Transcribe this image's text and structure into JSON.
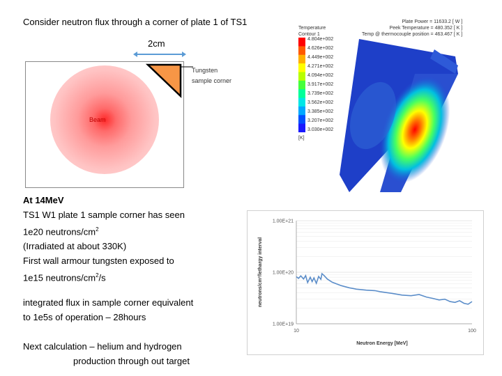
{
  "title": "Consider neutron flux through a corner of plate 1 of TS1",
  "diagram": {
    "dimension_label": "2cm",
    "corner_label_line1": "Tungsten",
    "corner_label_line2": "sample corner",
    "beam_label": "Beam"
  },
  "text": {
    "p1": [
      "At 14MeV",
      "TS1 W1 plate 1 sample corner has seen",
      "1e20 neutrons/cm",
      "(Irradiated at about 330K)",
      "First wall armour tungsten exposed to",
      "1e15 neutrons/cm",
      "/s"
    ],
    "sup2": "2",
    "p2": [
      "integrated flux in sample corner equivalent",
      "to 1e5s of operation – 28hours"
    ],
    "p3": [
      "Next calculation – helium and hydrogen",
      "production through out target"
    ]
  },
  "thermal": {
    "legend_title": "Temperature",
    "legend_subtitle": "Contour 1",
    "legend_unit": "[K]",
    "legend_values": [
      "4.804e+002",
      "4.626e+002",
      "4.449e+002",
      "4.271e+002",
      "4.094e+002",
      "3.917e+002",
      "3.739e+002",
      "3.562e+002",
      "3.385e+002",
      "3.207e+002",
      "3.030e+002"
    ],
    "legend_colors": [
      "#ff0000",
      "#ff5a00",
      "#ffb000",
      "#ffff00",
      "#b8ff00",
      "#46ff3c",
      "#00ff9a",
      "#00e6e6",
      "#00a8ff",
      "#0050ff",
      "#1a1aff"
    ],
    "info": [
      "Plate Power = 11633.2 [ W ]",
      "Peek Temperature = 480.352 [ K ]",
      "Temp @ thermocouple position = 463.467 [ K ]"
    ]
  },
  "chart_data": {
    "type": "line",
    "xlabel": "Neutron Energy [MeV]",
    "ylabel": "neutrons/cm²/lethargy interval",
    "xticks": [
      "10",
      "100"
    ],
    "yticks": [
      "1.00E+19",
      "1.00E+20",
      "1.00E+21"
    ],
    "xlim": [
      10,
      100
    ],
    "ylim": [
      1e+19,
      1e+21
    ],
    "xscale": "log",
    "yscale": "log",
    "series": [
      {
        "color": "#5b8dc9",
        "x": [
          10,
          10.3,
          10.6,
          11,
          11.3,
          11.6,
          12,
          12.3,
          12.6,
          13,
          13.4,
          13.8,
          14,
          14.4,
          15,
          16,
          18,
          20,
          22,
          25,
          28,
          30,
          35,
          40,
          45,
          50,
          55,
          60,
          65,
          70,
          75,
          80,
          85,
          90,
          95,
          100
        ],
        "y": [
          8.2e+19,
          7.6e+19,
          8.5e+19,
          7.4e+19,
          8.6e+19,
          6.3e+19,
          8e+19,
          6.6e+19,
          7.8e+19,
          6.1e+19,
          8.3e+19,
          7.3e+19,
          9.4e+19,
          8.6e+19,
          7.4e+19,
          6.4e+19,
          5.5e+19,
          5e+19,
          4.7e+19,
          4.5e+19,
          4.4e+19,
          4.2e+19,
          3.9e+19,
          3.6e+19,
          3.5e+19,
          3.7e+19,
          3.3e+19,
          3.1e+19,
          2.9e+19,
          3e+19,
          2.7e+19,
          2.6e+19,
          2.8e+19,
          2.5e+19,
          2.4e+19,
          2.7e+19
        ]
      }
    ]
  }
}
